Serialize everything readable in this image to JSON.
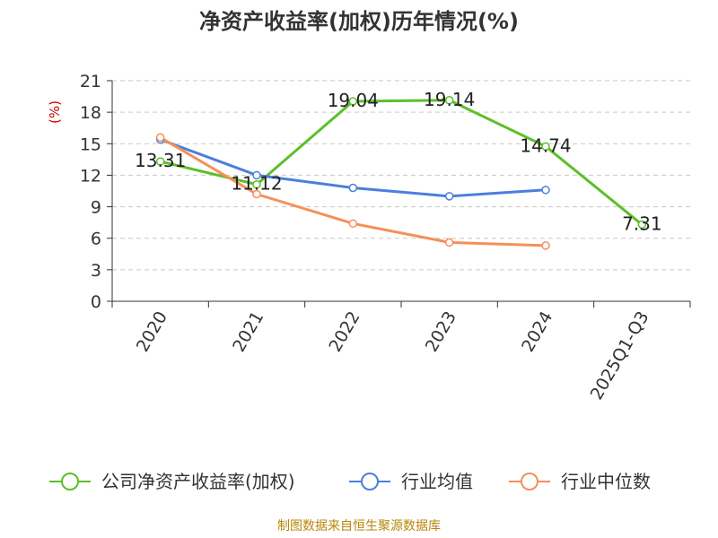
{
  "chart_data": {
    "type": "line",
    "title": "净资产收益率(加权)历年情况(%)",
    "ylabel": "(%)",
    "xlabel": "",
    "categories": [
      "2020",
      "2021",
      "2022",
      "2023",
      "2024",
      "2025Q1-Q3"
    ],
    "yticks": [
      "0",
      "3",
      "6",
      "9",
      "12",
      "15",
      "18",
      "21"
    ],
    "ylim": [
      0,
      21
    ],
    "grid": "horizontal-dashed",
    "legend_position": "bottom",
    "series": [
      {
        "name": "公司净资产收益率(加权)",
        "color": "#5cbf2a",
        "values": [
          13.31,
          11.12,
          19.04,
          19.14,
          14.74,
          7.31
        ],
        "labels": [
          "13.31",
          "11.12",
          "19.04",
          "19.14",
          "14.74",
          "7.31"
        ]
      },
      {
        "name": "行业均值",
        "color": "#4a7fdc",
        "values": [
          15.4,
          12.0,
          10.8,
          10.0,
          10.6,
          null
        ]
      },
      {
        "name": "行业中位数",
        "color": "#f4905a",
        "values": [
          15.6,
          10.2,
          7.4,
          5.6,
          5.3,
          null
        ]
      }
    ]
  },
  "source": "制图数据来自恒生聚源数据库"
}
